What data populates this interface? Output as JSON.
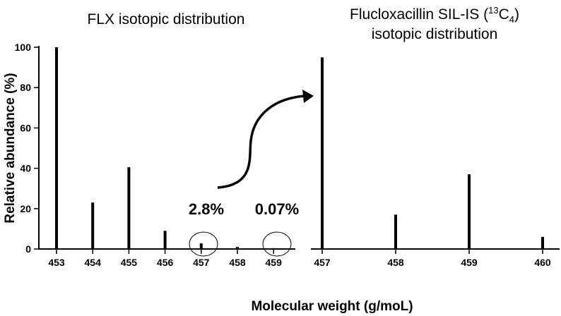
{
  "chart_data": [
    {
      "type": "bar",
      "title": "FLX isotopic distribution",
      "xlabel": "Molecular weight (g/moL)",
      "ylabel": "Relative abundance (%)",
      "ylim": [
        0,
        100
      ],
      "yticks": [
        "0",
        "20",
        "40",
        "60",
        "80",
        "100"
      ],
      "categories": [
        "453",
        "454",
        "455",
        "456",
        "457",
        "458",
        "459"
      ],
      "values": [
        100,
        23,
        40.5,
        9,
        2.8,
        1,
        0.07
      ],
      "annotations": [
        "2.8%",
        "0.07%"
      ],
      "circled_categories": [
        "457",
        "459"
      ],
      "grid": false
    },
    {
      "type": "bar",
      "title_parts": [
        "Flucloxacillin SIL-IS (",
        "13",
        "C",
        "4",
        ")"
      ],
      "title_line2": "isotopic distribution",
      "ylim": [
        0,
        100
      ],
      "categories": [
        "457",
        "458",
        "459",
        "460"
      ],
      "values": [
        95,
        17,
        37,
        6
      ],
      "grid": false
    }
  ],
  "colors": {
    "bar": "#000000",
    "axis": "#000000"
  }
}
